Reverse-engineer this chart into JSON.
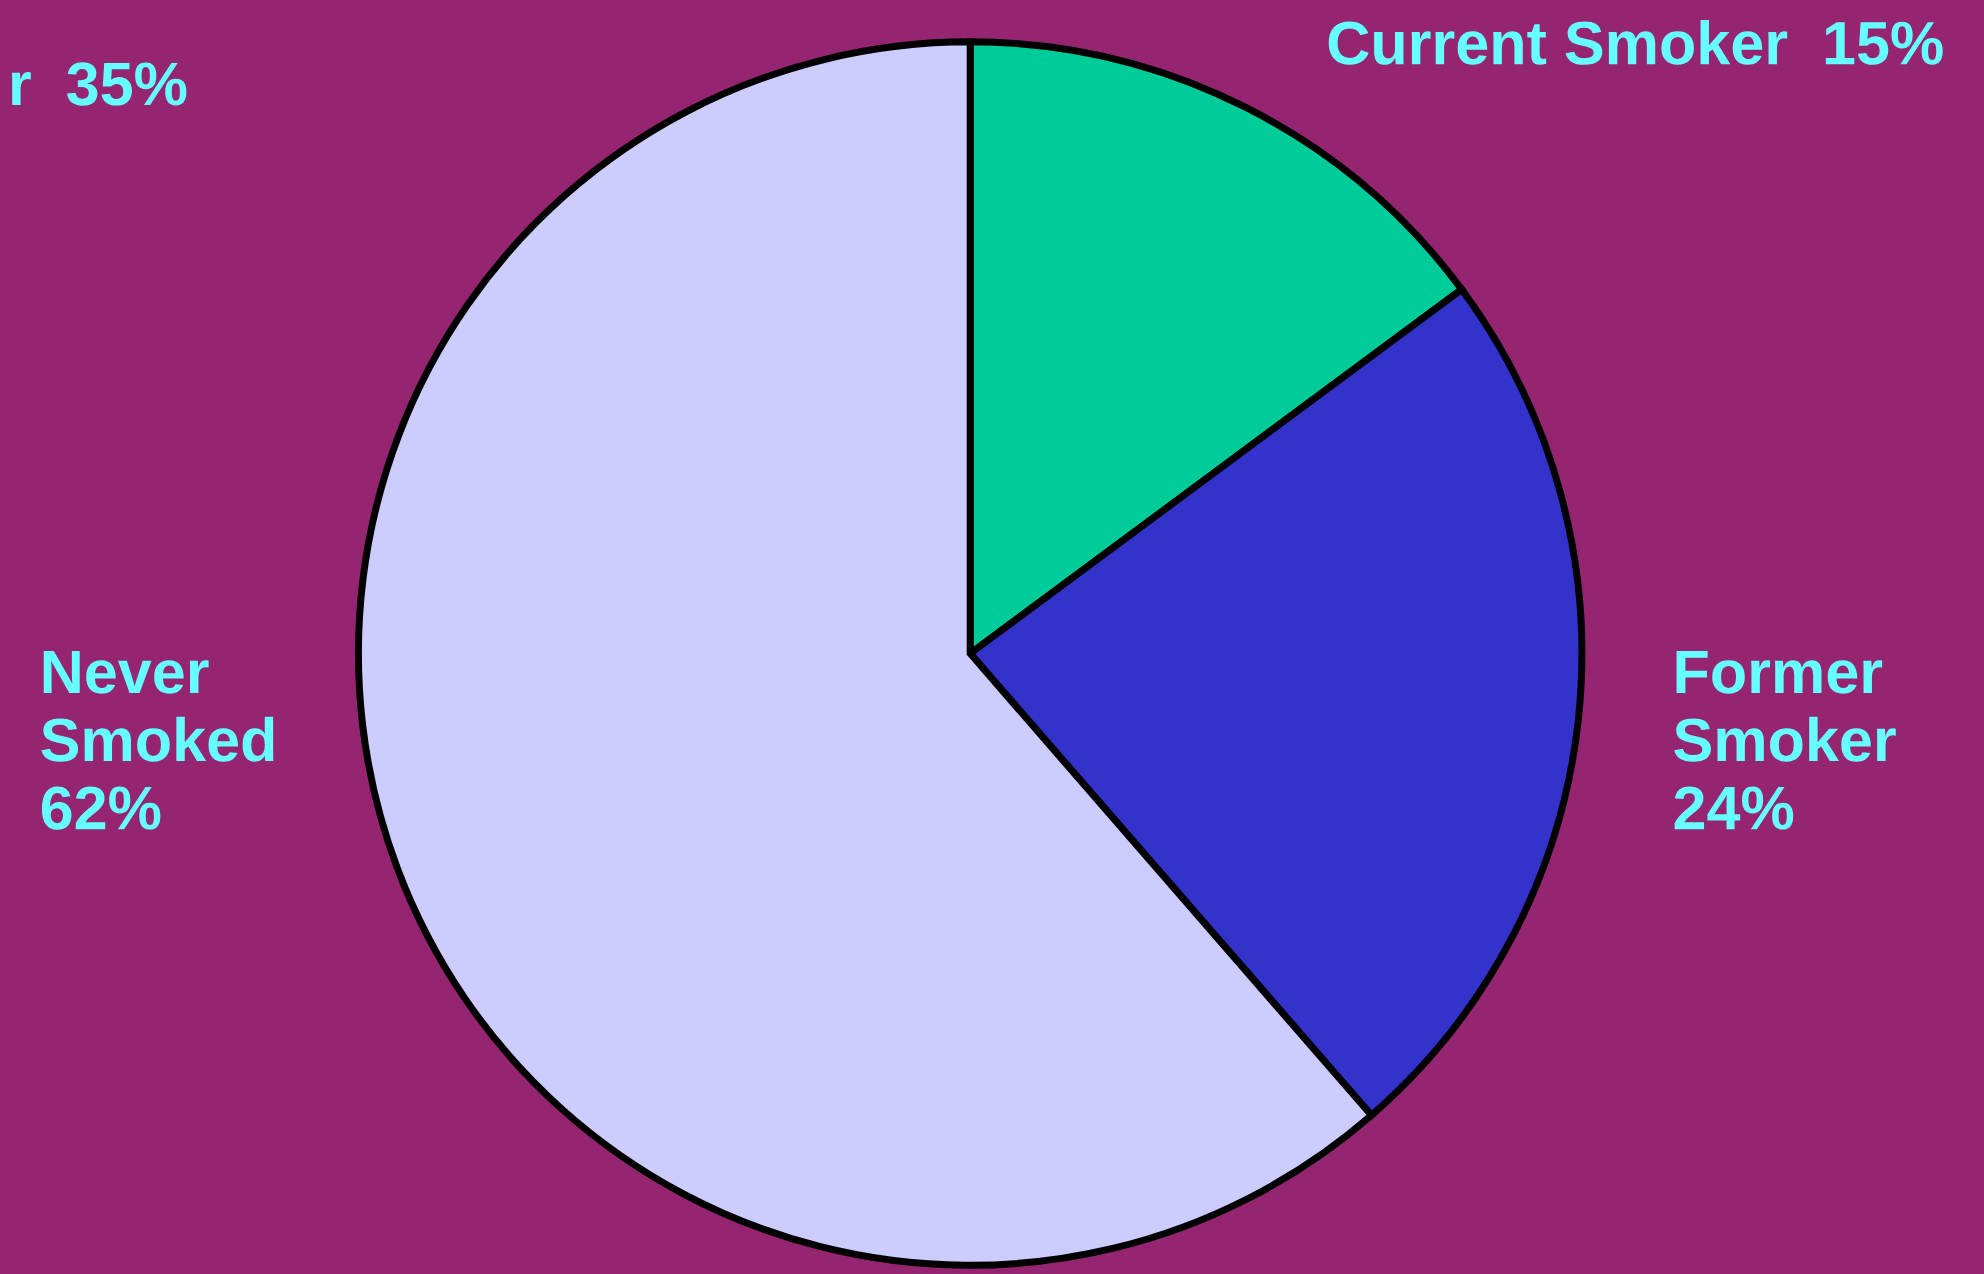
{
  "chart_data": {
    "type": "pie",
    "categories": [
      "Current Smoker",
      "Former Smoker",
      "Never Smoked"
    ],
    "values": [
      15,
      24,
      62
    ],
    "value_labels": [
      "15%",
      "24%",
      "62%"
    ],
    "colors": [
      "#00cc99",
      "#3333cc",
      "#ccccff"
    ],
    "annotations": [
      "r  35%"
    ],
    "legend": false
  }
}
